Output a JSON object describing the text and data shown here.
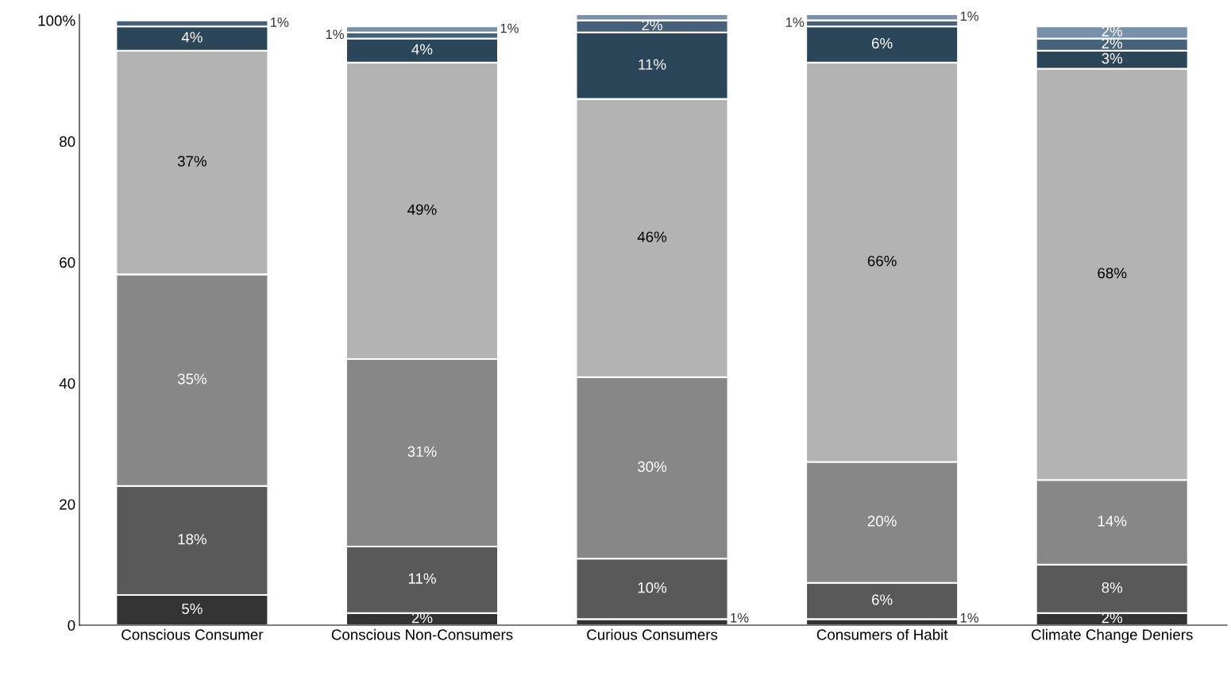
{
  "chart_data": {
    "type": "bar",
    "stacked": true,
    "categories": [
      "Conscious Consumer",
      "Conscious Non-Consumers",
      "Curious Consumers",
      "Consumers of Habit",
      "Climate Change Deniers"
    ],
    "series": [
      {
        "color": "#333333",
        "values": [
          5,
          2,
          1,
          1,
          2
        ],
        "value_labels": [
          "5%",
          "2%",
          "1%",
          "1%",
          "2%"
        ]
      },
      {
        "color": "#595959",
        "values": [
          18,
          11,
          10,
          6,
          8
        ],
        "value_labels": [
          "18%",
          "11%",
          "10%",
          "6%",
          "8%"
        ]
      },
      {
        "color": "#878787",
        "values": [
          35,
          31,
          30,
          20,
          14
        ],
        "value_labels": [
          "35%",
          "31%",
          "30%",
          "20%",
          "14%"
        ]
      },
      {
        "color": "#b3b3b3",
        "values": [
          37,
          49,
          46,
          66,
          68
        ],
        "value_labels": [
          "37%",
          "49%",
          "46%",
          "66%",
          "68%"
        ]
      },
      {
        "color": "#2c4659",
        "values": [
          4,
          4,
          11,
          6,
          3
        ],
        "value_labels": [
          "4%",
          "4%",
          "11%",
          "6%",
          "3%"
        ]
      },
      {
        "color": "#46617a",
        "values": [
          1,
          1,
          2,
          1,
          2
        ],
        "value_labels": [
          "1%",
          "1%",
          "2%",
          "1%",
          "2%"
        ]
      },
      {
        "color": "#7890aa",
        "values": [
          null,
          1,
          1,
          1,
          2
        ],
        "value_labels": [
          null,
          "1%",
          null,
          "1%",
          "2%"
        ]
      }
    ],
    "ylim": [
      0,
      101
    ],
    "yticks": [
      0,
      20,
      40,
      60,
      80,
      {
        "value": 100,
        "label": "100%"
      }
    ],
    "grid": false
  }
}
